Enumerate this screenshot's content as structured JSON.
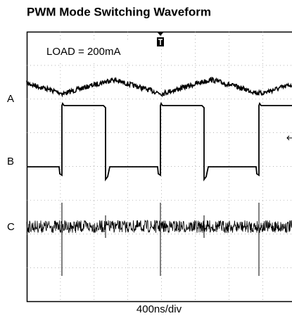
{
  "title": "PWM Mode Switching Waveform",
  "annotation": "LOAD = 200mA",
  "channels": [
    "A",
    "B",
    "C"
  ],
  "x_label": "400ns/div"
}
